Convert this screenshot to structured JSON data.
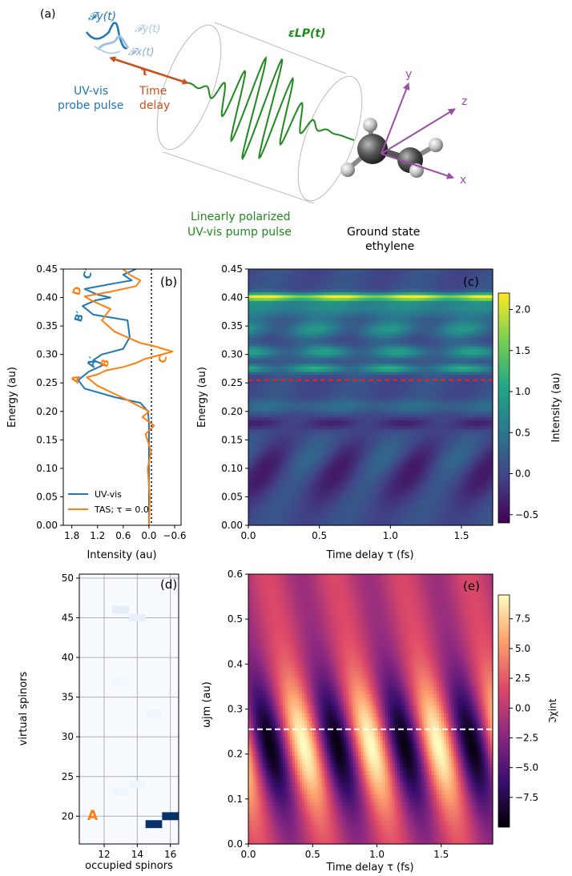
{
  "panel_a": {
    "label": "(a)",
    "probe_fy": "𝓕y(t)",
    "probe_fy_faded": "𝓕y(t)",
    "probe_fx": "𝓕x(t)",
    "tau": "τ",
    "probe_label_1": "UV-vis",
    "probe_label_2": "probe pulse",
    "delay_label_1": "Time",
    "delay_label_2": "delay",
    "pump_field": "εLP(t)",
    "pump_label_1": "Linearly polarized",
    "pump_label_2": "UV-vis pump pulse",
    "molecule_label_1": "Ground state",
    "molecule_label_2": "ethylene",
    "axis_x": "x",
    "axis_y": "y",
    "axis_z": "z",
    "colors": {
      "probe": "#1f77b4",
      "delay": "#c8511c",
      "pump": "#1f8a1f",
      "axes": "#9b4fa6"
    }
  },
  "chart_data": [
    {
      "id": "b",
      "type": "line",
      "panel_label": "(b)",
      "xlabel": "Intensity (au)",
      "ylabel": "Energy (au)",
      "xlim": [
        2.0,
        -0.75
      ],
      "ylim": [
        0.0,
        0.45
      ],
      "xticks": [
        "1.8",
        "1.2",
        "0.6",
        "0.0",
        "−0.6"
      ],
      "xtick_values": [
        1.8,
        1.2,
        0.6,
        0.0,
        -0.6
      ],
      "yticks": [
        "0.00",
        "0.05",
        "0.10",
        "0.15",
        "0.20",
        "0.25",
        "0.30",
        "0.35",
        "0.40",
        "0.45"
      ],
      "ytick_values": [
        0.0,
        0.05,
        0.1,
        0.15,
        0.2,
        0.25,
        0.3,
        0.35,
        0.4,
        0.45
      ],
      "legend_position": "lower-left",
      "series": [
        {
          "name": "UV-vis",
          "color": "#1f77b4",
          "points": [
            [
              0.0,
              0.0
            ],
            [
              0.0,
              0.18
            ],
            [
              0.02,
              0.2
            ],
            [
              0.2,
              0.215
            ],
            [
              0.8,
              0.225
            ],
            [
              1.5,
              0.24
            ],
            [
              1.65,
              0.255
            ],
            [
              1.4,
              0.27
            ],
            [
              1.05,
              0.282
            ],
            [
              1.3,
              0.29
            ],
            [
              1.1,
              0.3
            ],
            [
              0.6,
              0.31
            ],
            [
              0.45,
              0.33
            ],
            [
              0.5,
              0.36
            ],
            [
              1.3,
              0.37
            ],
            [
              1.55,
              0.385
            ],
            [
              1.25,
              0.395
            ],
            [
              0.9,
              0.4
            ],
            [
              1.2,
              0.405
            ],
            [
              1.5,
              0.415
            ],
            [
              0.8,
              0.425
            ],
            [
              0.4,
              0.43
            ],
            [
              0.6,
              0.44
            ],
            [
              0.3,
              0.45
            ]
          ]
        },
        {
          "name": "TAS; τ = 0.0",
          "color": "#ff7f0e",
          "points": [
            [
              0.0,
              0.0
            ],
            [
              -0.02,
              0.05
            ],
            [
              0.03,
              0.1
            ],
            [
              -0.05,
              0.13
            ],
            [
              0.08,
              0.16
            ],
            [
              -0.12,
              0.175
            ],
            [
              0.15,
              0.19
            ],
            [
              0.0,
              0.2
            ],
            [
              0.5,
              0.22
            ],
            [
              1.2,
              0.245
            ],
            [
              1.45,
              0.26
            ],
            [
              1.2,
              0.265
            ],
            [
              1.0,
              0.272
            ],
            [
              0.6,
              0.278
            ],
            [
              0.3,
              0.285
            ],
            [
              0.1,
              0.292
            ],
            [
              -0.55,
              0.305
            ],
            [
              -0.1,
              0.315
            ],
            [
              0.2,
              0.32
            ],
            [
              0.8,
              0.34
            ],
            [
              1.1,
              0.36
            ],
            [
              0.9,
              0.38
            ],
            [
              1.35,
              0.395
            ],
            [
              1.5,
              0.402
            ],
            [
              0.9,
              0.41
            ],
            [
              0.3,
              0.42
            ],
            [
              0.2,
              0.43
            ],
            [
              0.45,
              0.44
            ],
            [
              0.6,
              0.45
            ]
          ]
        }
      ],
      "annotations": [
        {
          "text": "A",
          "series": "TAS",
          "x": 1.63,
          "y": 0.255
        },
        {
          "text": "B",
          "series": "TAS",
          "x": 0.95,
          "y": 0.283
        },
        {
          "text": "C",
          "series": "TAS",
          "x": -0.4,
          "y": 0.29
        },
        {
          "text": "D",
          "series": "TAS",
          "x": 1.6,
          "y": 0.41
        },
        {
          "text": "A′",
          "series": "UV-vis",
          "x": 1.25,
          "y": 0.285
        },
        {
          "text": "B′",
          "series": "UV-vis",
          "x": 1.55,
          "y": 0.365
        },
        {
          "text": "C′",
          "series": "UV-vis",
          "x": 1.35,
          "y": 0.44
        }
      ]
    },
    {
      "id": "c",
      "type": "heatmap",
      "panel_label": "(c)",
      "xlabel": "Time delay τ (fs)",
      "ylabel": "Energy (au)",
      "xlim": [
        0.0,
        1.72
      ],
      "ylim": [
        0.0,
        0.45
      ],
      "xticks": [
        "0.0",
        "0.5",
        "1.0",
        "1.5"
      ],
      "xtick_values": [
        0.0,
        0.5,
        1.0,
        1.5
      ],
      "yticks": [
        "0.00",
        "0.05",
        "0.10",
        "0.15",
        "0.20",
        "0.25",
        "0.30",
        "0.35",
        "0.40",
        "0.45"
      ],
      "ytick_values": [
        0.0,
        0.05,
        0.1,
        0.15,
        0.2,
        0.25,
        0.3,
        0.35,
        0.4,
        0.45
      ],
      "cbar_label": "Intensity (au)",
      "cbar_ticks": [
        "−0.5",
        "0.0",
        "0.5",
        "1.0",
        "1.5",
        "2.0"
      ],
      "cbar_values": [
        -0.5,
        0.0,
        0.5,
        1.0,
        1.5,
        2.0
      ],
      "vmin": -0.6,
      "vmax": 2.2,
      "colormap": "viridis",
      "hline": {
        "y": 0.255,
        "color": "#e8251f",
        "style": "dashed"
      }
    },
    {
      "id": "d",
      "type": "heatmap",
      "panel_label": "(d)",
      "xlabel": "occupied spinors",
      "ylabel": "virtual spinors",
      "xlim": [
        10.5,
        16.5
      ],
      "ylim": [
        16.5,
        50.5
      ],
      "xticks": [
        "12",
        "14",
        "16"
      ],
      "xtick_values": [
        12,
        14,
        16
      ],
      "yticks": [
        "20",
        "25",
        "30",
        "35",
        "40",
        "45",
        "50"
      ],
      "ytick_values": [
        20,
        25,
        30,
        35,
        40,
        45,
        50
      ],
      "grid": true,
      "corner_label": "A",
      "corner_label_color": "#ff7f0e",
      "colormap": "Blues",
      "cells": [
        {
          "occ": 15,
          "vir": 19,
          "value": 1.0
        },
        {
          "occ": 16,
          "vir": 20,
          "value": 1.0
        },
        {
          "occ": 13,
          "vir": 46,
          "value": 0.12
        },
        {
          "occ": 14,
          "vir": 45,
          "value": 0.1
        },
        {
          "occ": 15,
          "vir": 33,
          "value": 0.05
        },
        {
          "occ": 14,
          "vir": 24,
          "value": 0.05
        },
        {
          "occ": 13,
          "vir": 23,
          "value": 0.05
        },
        {
          "occ": 13,
          "vir": 37,
          "value": 0.04
        }
      ]
    },
    {
      "id": "e",
      "type": "heatmap",
      "panel_label": "(e)",
      "xlabel": "Time delay τ (fs)",
      "ylabel": "ωjm (au)",
      "xlim": [
        0.0,
        1.9
      ],
      "ylim": [
        0.0,
        0.6
      ],
      "xticks": [
        "0.0",
        "0.5",
        "1.0",
        "1.5"
      ],
      "xtick_values": [
        0.0,
        0.5,
        1.0,
        1.5
      ],
      "yticks": [
        "0.0",
        "0.1",
        "0.2",
        "0.3",
        "0.4",
        "0.5",
        "0.6"
      ],
      "ytick_values": [
        0.0,
        0.1,
        0.2,
        0.3,
        0.4,
        0.5,
        0.6
      ],
      "cbar_label": "ℑχint",
      "cbar_ticks": [
        "−7.5",
        "−5.0",
        "−2.5",
        "0.0",
        "2.5",
        "5.0",
        "7.5"
      ],
      "cbar_values": [
        -7.5,
        -5.0,
        -2.5,
        0.0,
        2.5,
        5.0,
        7.5
      ],
      "vmin": -10.0,
      "vmax": 9.5,
      "colormap": "magma",
      "hline": {
        "y": 0.255,
        "color": "#ffffff",
        "style": "dashed"
      }
    }
  ]
}
